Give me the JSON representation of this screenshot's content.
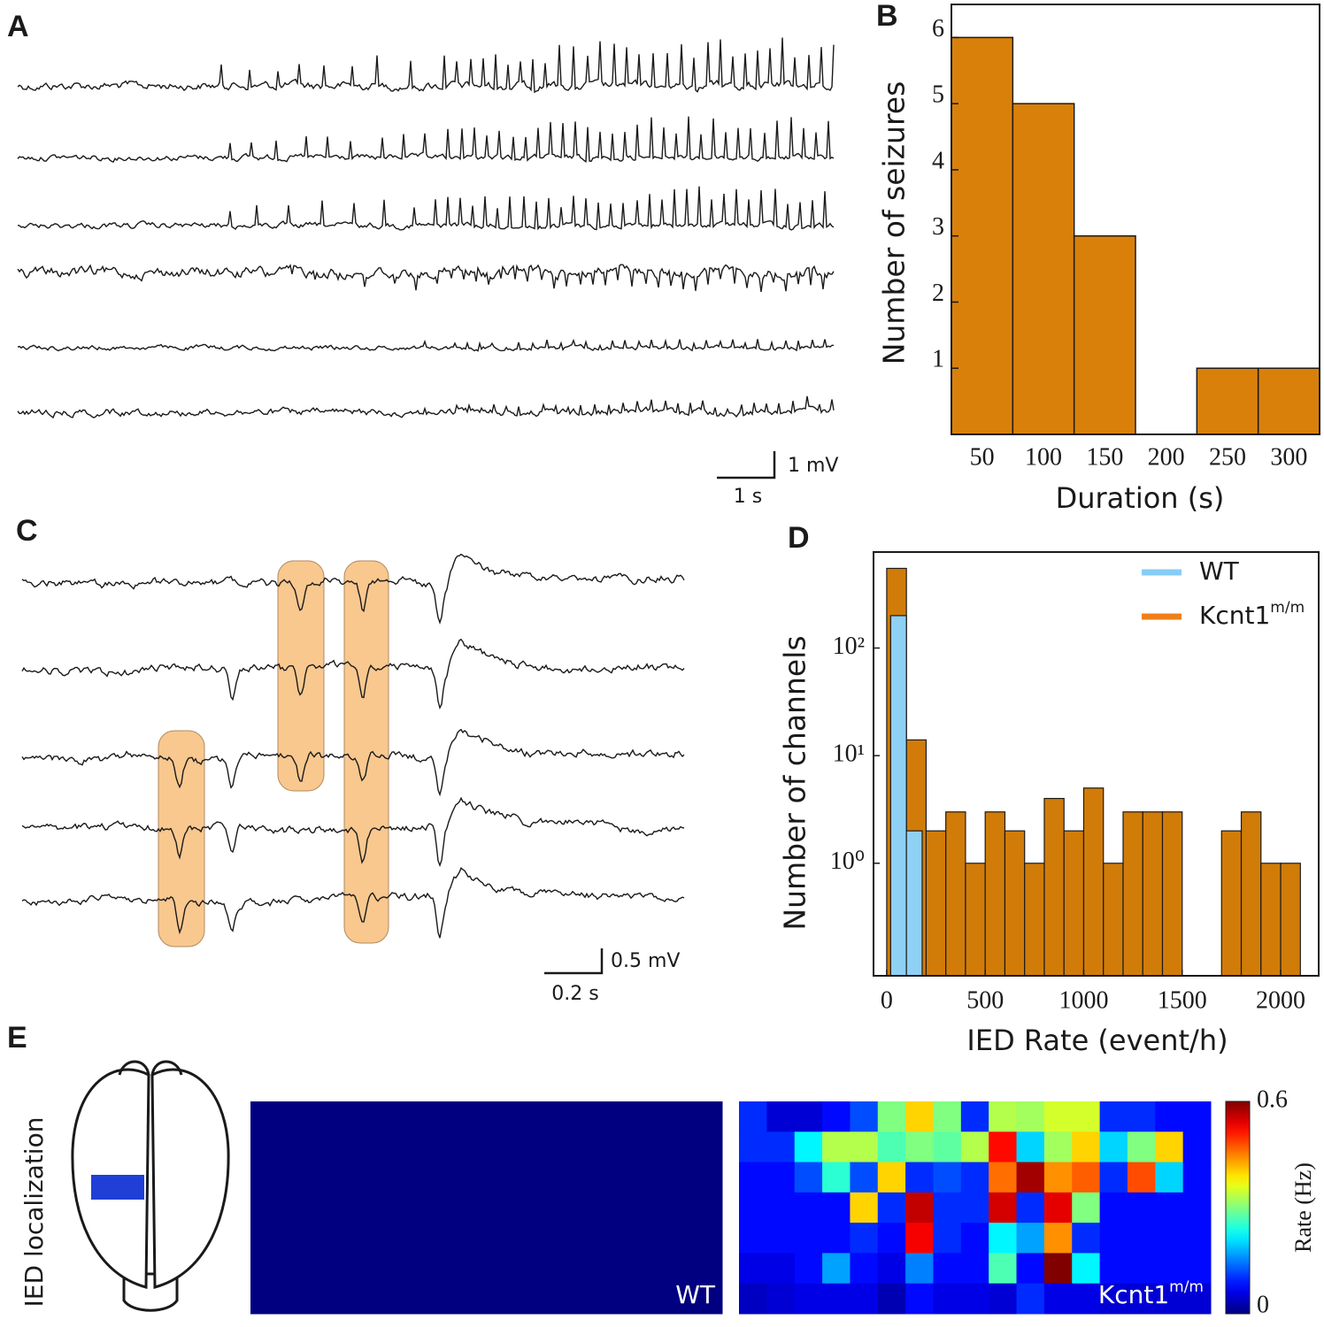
{
  "panel_labels": [
    "A",
    "B",
    "C",
    "D",
    "E"
  ],
  "panel_a": {
    "scale_y": "1 mV",
    "scale_x": "1 s"
  },
  "panel_c": {
    "scale_y": "0.5 mV",
    "scale_x": "0.2 s"
  },
  "panel_e": {
    "row_label": "IED localization"
  },
  "chart_data": [
    {
      "type": "bar",
      "categories": [
        50,
        100,
        150,
        200,
        250,
        300
      ],
      "values": [
        6,
        5,
        3,
        0,
        1,
        1
      ],
      "color": "#d9800b",
      "ylim": [
        0,
        6.5
      ],
      "yticks": [
        1,
        2,
        3,
        4,
        5,
        6
      ],
      "y_label": "Number of seizures",
      "x_label": "Duration (s)"
    },
    {
      "type": "histogram",
      "log_y": true,
      "legend": "upper right",
      "series": [
        {
          "name": "Kcnt1",
          "name_superscript": "m/m",
          "color": "#d17c09",
          "legend_color": "#f07f1a",
          "bins": [
            0,
            100,
            200,
            300,
            400,
            500,
            600,
            700,
            800,
            900,
            1000,
            1100,
            1200,
            1300,
            1400,
            1500,
            1600,
            1700,
            1800,
            1900,
            2000,
            2100
          ],
          "values": [
            550,
            14,
            2,
            3,
            1,
            3,
            2,
            1,
            4,
            2,
            5,
            1,
            3,
            3,
            3,
            0,
            0,
            2,
            3,
            1,
            1
          ]
        },
        {
          "name": "WT",
          "color": "#8fd0f5",
          "legend_color": "#86cdf5",
          "bins": [
            20,
            100,
            180
          ],
          "values": [
            200,
            2
          ]
        }
      ],
      "xlim": [
        -67,
        2193
      ],
      "xticks": [
        0,
        500,
        1000,
        1500,
        2000
      ],
      "ylim": [
        0.09,
        780
      ],
      "yticks": [
        {
          "value": 1,
          "label": "10⁰"
        },
        {
          "value": 10,
          "label": "10¹"
        },
        {
          "value": 100,
          "label": "10²"
        }
      ],
      "y_label": "Number of channels",
      "x_label": "IED Rate (event/h)"
    },
    {
      "type": "heatmap",
      "colormap": "jet",
      "clim": [
        0,
        0.6
      ],
      "colorbar_ticks": [
        0,
        0.6
      ],
      "colorbar_label": "Rate (Hz)",
      "maps": [
        {
          "label": "WT",
          "values": [
            [
              0,
              0,
              0,
              0,
              0,
              0,
              0,
              0,
              0,
              0,
              0,
              0,
              0,
              0,
              0,
              0,
              0
            ],
            [
              0,
              0,
              0,
              0,
              0,
              0,
              0,
              0,
              0,
              0,
              0,
              0,
              0,
              0,
              0,
              0,
              0
            ],
            [
              0,
              0,
              0,
              0,
              0,
              0,
              0,
              0,
              0,
              0,
              0,
              0,
              0,
              0,
              0,
              0,
              0
            ],
            [
              0,
              0,
              0,
              0,
              0,
              0,
              0,
              0,
              0,
              0,
              0,
              0,
              0,
              0,
              0,
              0,
              0
            ],
            [
              0,
              0,
              0,
              0,
              0,
              0,
              0,
              0,
              0,
              0,
              0,
              0,
              0,
              0,
              0,
              0,
              0
            ],
            [
              0,
              0,
              0,
              0,
              0,
              0,
              0,
              0,
              0,
              0,
              0,
              0,
              0,
              0,
              0,
              0,
              0
            ],
            [
              0,
              0,
              0,
              0,
              0,
              0,
              0,
              0,
              0,
              0,
              0,
              0,
              0,
              0,
              0,
              0,
              0
            ]
          ]
        },
        {
          "label": "Kcnt1",
          "label_superscript": "m/m",
          "values": [
            [
              0.1,
              0.05,
              0.05,
              0.08,
              0.12,
              0.3,
              0.4,
              0.3,
              0.1,
              0.33,
              0.32,
              0.35,
              0.35,
              0.1,
              0.1,
              0.08,
              0.08
            ],
            [
              0.1,
              0.1,
              0.22,
              0.33,
              0.33,
              0.27,
              0.3,
              0.28,
              0.33,
              0.52,
              0.2,
              0.32,
              0.4,
              0.2,
              0.3,
              0.4,
              0.08
            ],
            [
              0.08,
              0.08,
              0.12,
              0.25,
              0.12,
              0.4,
              0.1,
              0.12,
              0.1,
              0.46,
              0.58,
              0.44,
              0.47,
              0.1,
              0.48,
              0.2,
              0.08
            ],
            [
              0.08,
              0.08,
              0.08,
              0.08,
              0.4,
              0.1,
              0.56,
              0.1,
              0.1,
              0.55,
              0.1,
              0.54,
              0.3,
              0.08,
              0.08,
              0.08,
              0.08
            ],
            [
              0.08,
              0.08,
              0.08,
              0.08,
              0.1,
              0.08,
              0.53,
              0.1,
              0.08,
              0.22,
              0.17,
              0.44,
              0.1,
              0.08,
              0.08,
              0.08,
              0.08
            ],
            [
              0.06,
              0.06,
              0.08,
              0.17,
              0.08,
              0.06,
              0.15,
              0.08,
              0.08,
              0.27,
              0.08,
              0.6,
              0.22,
              0.08,
              0.08,
              0.08,
              0.08
            ],
            [
              0.04,
              0.05,
              0.06,
              0.06,
              0.06,
              0.03,
              0.08,
              0.06,
              0.06,
              0.05,
              0.1,
              0.06,
              0.06,
              0.05,
              0.05,
              0.05,
              0.05
            ]
          ]
        }
      ]
    }
  ]
}
